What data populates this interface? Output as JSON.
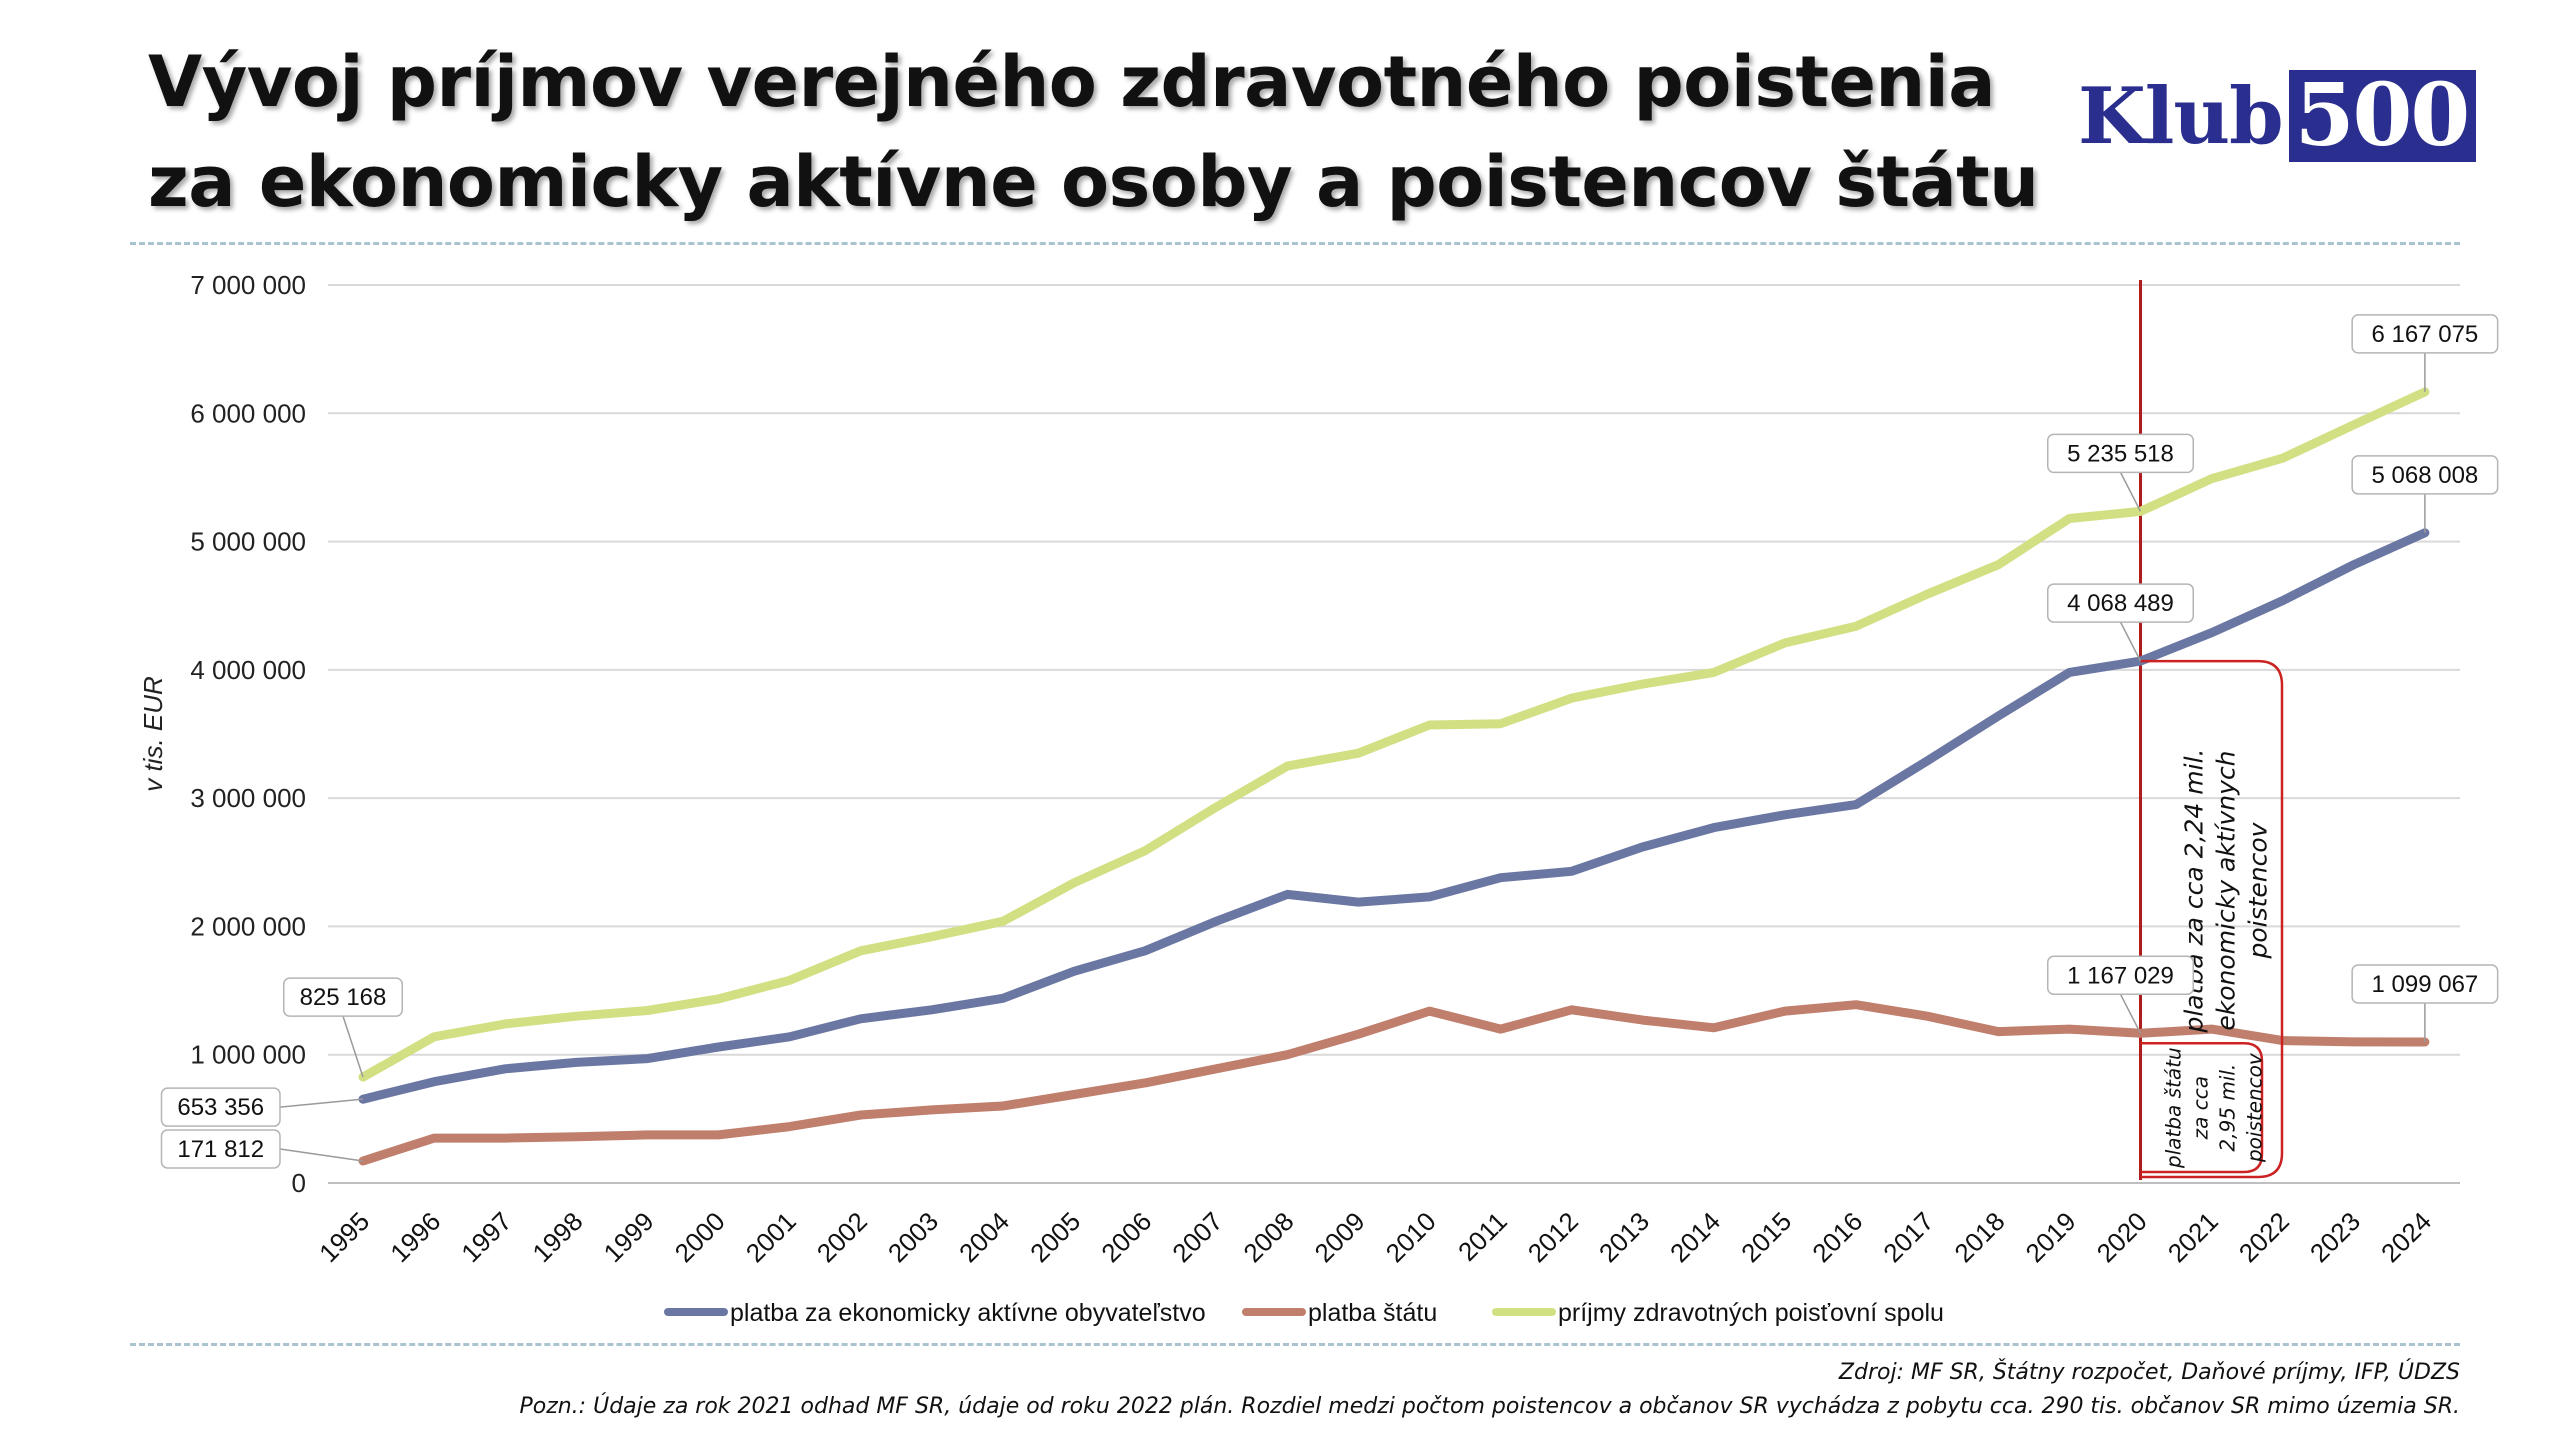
{
  "title": {
    "line1": "Vývoj príjmov verejného zdravotného poistenia",
    "line2": "za ekonomicky aktívne osoby a poistencov štátu"
  },
  "logo": {
    "text": "Klub",
    "number": "500",
    "color": "#2a2f8f"
  },
  "source": "Zdroj: MF SR, Štátny rozpočet, Daňové príjmy, IFP, ÚDZS",
  "note": "Pozn.: Údaje za rok 2021 odhad MF SR, údaje od roku 2022 plán. Rozdiel medzi počtom poistencov a občanov SR vychádza z pobytu cca. 290 tis. občanov SR mimo územia SR.",
  "chart_data": {
    "type": "line",
    "ylabel": "v tis. EUR",
    "ylim": [
      0,
      7000000
    ],
    "yticks": [
      0,
      1000000,
      2000000,
      3000000,
      4000000,
      5000000,
      6000000,
      7000000
    ],
    "ytick_labels": [
      "0",
      "1 000 000",
      "2 000 000",
      "3 000 000",
      "4 000 000",
      "5 000 000",
      "6 000 000",
      "7 000 000"
    ],
    "grid": true,
    "legend_position": "bottom",
    "categories": [
      "1995",
      "1996",
      "1997",
      "1998",
      "1999",
      "2000",
      "2001",
      "2002",
      "2003",
      "2004",
      "2005",
      "2006",
      "2007",
      "2008",
      "2009",
      "2010",
      "2011",
      "2012",
      "2013",
      "2014",
      "2015",
      "2016",
      "2017",
      "2018",
      "2019",
      "2020",
      "2021",
      "2022",
      "2023",
      "2024"
    ],
    "series": [
      {
        "name": "platba za ekonomicky aktívne obyvateľstvo",
        "color": "#6b77a3",
        "values": [
          653356,
          790000,
          890000,
          940000,
          970000,
          1060000,
          1140000,
          1280000,
          1350000,
          1440000,
          1650000,
          1810000,
          2040000,
          2250000,
          2190000,
          2230000,
          2380000,
          2430000,
          2620000,
          2770000,
          2870000,
          2950000,
          3290000,
          3640000,
          3980000,
          4068489,
          4290000,
          4540000,
          4820000,
          5068008
        ]
      },
      {
        "name": "platba štátu",
        "color": "#c07e6c",
        "values": [
          171812,
          350000,
          350000,
          360000,
          375000,
          375000,
          440000,
          530000,
          570000,
          600000,
          690000,
          780000,
          890000,
          1000000,
          1160000,
          1340000,
          1200000,
          1350000,
          1270000,
          1210000,
          1340000,
          1390000,
          1300000,
          1180000,
          1200000,
          1167029,
          1200000,
          1110000,
          1100000,
          1099067
        ]
      },
      {
        "name": "príjmy zdravotných poisťovní spolu",
        "color": "#d2df82",
        "values": [
          825168,
          1140000,
          1240000,
          1300000,
          1345000,
          1435000,
          1580000,
          1810000,
          1920000,
          2040000,
          2340000,
          2590000,
          2930000,
          3250000,
          3350000,
          3570000,
          3580000,
          3780000,
          3890000,
          3980000,
          4210000,
          4340000,
          4590000,
          4820000,
          5180000,
          5235518,
          5490000,
          5650000,
          5910000,
          6167075
        ]
      }
    ],
    "data_labels": [
      {
        "series": 2,
        "index": 0,
        "text": "825 168"
      },
      {
        "series": 0,
        "index": 0,
        "text": "653 356"
      },
      {
        "series": 1,
        "index": 0,
        "text": "171 812"
      },
      {
        "series": 2,
        "index": 25,
        "text": "5 235 518"
      },
      {
        "series": 0,
        "index": 25,
        "text": "4 068 489"
      },
      {
        "series": 1,
        "index": 25,
        "text": "1 167 029"
      },
      {
        "series": 2,
        "index": 29,
        "text": "6 167 075"
      },
      {
        "series": 0,
        "index": 29,
        "text": "5 068 008"
      },
      {
        "series": 1,
        "index": 29,
        "text": "1 099 067"
      }
    ],
    "annotations": {
      "marker_year": "2020",
      "upper_text": [
        "platba za cca 2,24 mil.",
        "ekonomicky aktívnych",
        "poistencov"
      ],
      "lower_text": [
        "platba štátu",
        "za cca",
        "2,95 mil.",
        "poistencov"
      ],
      "color": "#cc2222"
    }
  }
}
